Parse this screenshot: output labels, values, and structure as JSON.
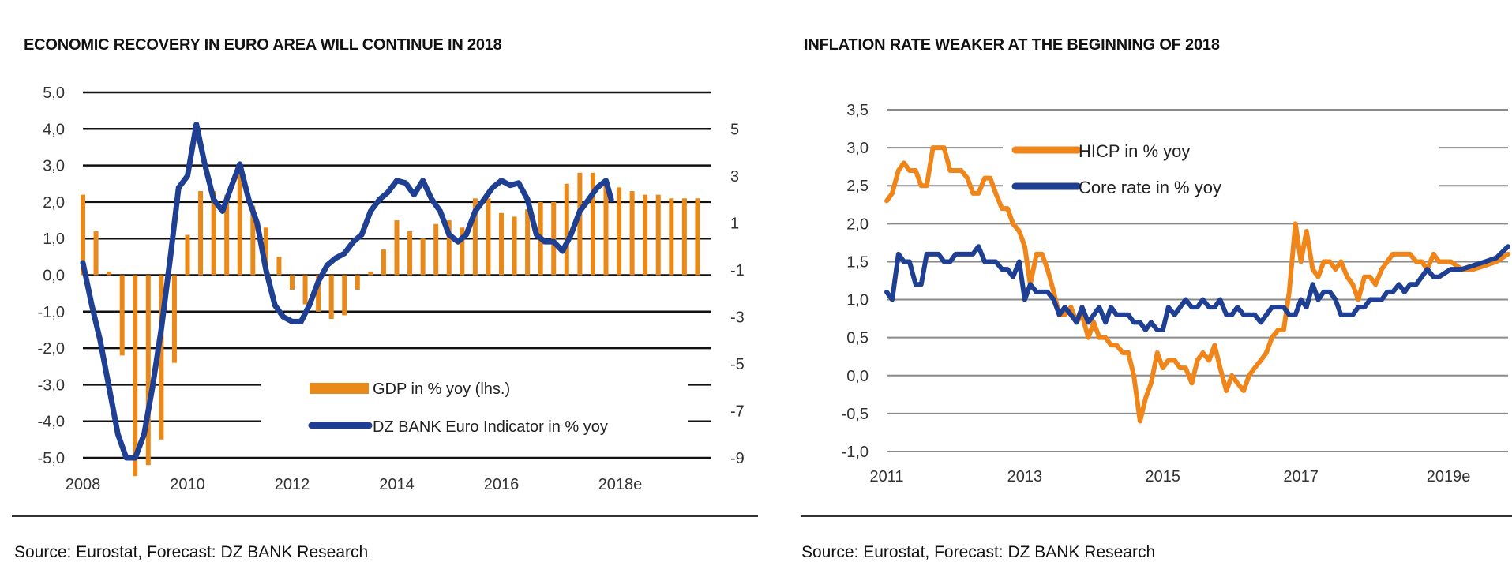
{
  "chart_data": [
    {
      "type": "bar+line",
      "title": "ECONOMIC RECOVERY IN EURO AREA WILL CONTINUE IN 2018",
      "source": "Source: Eurostat, Forecast: DZ BANK Research",
      "xlabel": "",
      "ylabel_left": "",
      "ylabel_right": "",
      "x_tick_labels": [
        "2008",
        "2010",
        "2012",
        "2014",
        "2016",
        "2018e"
      ],
      "x_range": [
        2008,
        2020
      ],
      "y_left": {
        "range": [
          -5,
          5
        ],
        "ticks": [
          "5,0",
          "4,0",
          "3,0",
          "2,0",
          "1,0",
          "0,0",
          "-1,0",
          "-2,0",
          "-3,0",
          "-4,0",
          "-5,0"
        ],
        "tick_values": [
          5,
          4,
          3,
          2,
          1,
          0,
          -1,
          -2,
          -3,
          -4,
          -5
        ]
      },
      "y_right": {
        "range": [
          -9,
          7
        ],
        "ticks": [
          "5",
          "3",
          "1",
          "-1",
          "-3",
          "-5",
          "-7",
          "-9"
        ],
        "tick_values": [
          5,
          3,
          1,
          -1,
          -3,
          -5,
          -7,
          -9
        ]
      },
      "grid": true,
      "legend": {
        "placement": "bottom-right",
        "entries": [
          {
            "label": "GDP in % yoy (lhs.)",
            "color": "#E8891A",
            "kind": "bar"
          },
          {
            "label": "DZ BANK Euro Indicator in % yoy",
            "color": "#1F3F93",
            "kind": "line"
          }
        ]
      },
      "series": [
        {
          "name": "GDP in % yoy (lhs.)",
          "type": "bar",
          "axis": "left",
          "color": "#E8891A",
          "x": [
            2008.0,
            2008.25,
            2008.5,
            2008.75,
            2009.0,
            2009.25,
            2009.5,
            2009.75,
            2010.0,
            2010.25,
            2010.5,
            2010.75,
            2011.0,
            2011.25,
            2011.5,
            2011.75,
            2012.0,
            2012.25,
            2012.5,
            2012.75,
            2013.0,
            2013.25,
            2013.5,
            2013.75,
            2014.0,
            2014.25,
            2014.5,
            2014.75,
            2015.0,
            2015.25,
            2015.5,
            2015.75,
            2016.0,
            2016.25,
            2016.5,
            2016.75,
            2017.0,
            2017.25,
            2017.5,
            2017.75,
            2018.0,
            2018.25,
            2018.5,
            2018.75,
            2019.0,
            2019.25,
            2019.5,
            2019.75
          ],
          "values": [
            2.2,
            1.2,
            0.1,
            -2.2,
            -5.5,
            -5.2,
            -4.5,
            -2.4,
            1.1,
            2.3,
            2.3,
            2.2,
            2.8,
            1.9,
            1.3,
            0.5,
            -0.4,
            -0.8,
            -1.0,
            -1.2,
            -1.1,
            -0.4,
            0.1,
            0.7,
            1.5,
            1.2,
            1.0,
            1.4,
            1.5,
            1.3,
            2.1,
            2.1,
            1.7,
            1.6,
            1.8,
            2.0,
            2.0,
            2.5,
            2.8,
            2.8,
            2.6,
            2.4,
            2.3,
            2.2,
            2.2,
            2.1,
            2.1,
            2.1
          ]
        },
        {
          "name": "DZ BANK Euro Indicator in % yoy",
          "type": "line",
          "axis": "right",
          "color": "#1F3F93",
          "x": [
            2008.0,
            2008.17,
            2008.33,
            2008.5,
            2008.67,
            2008.83,
            2009.0,
            2009.17,
            2009.33,
            2009.5,
            2009.67,
            2009.83,
            2010.0,
            2010.17,
            2010.33,
            2010.5,
            2010.67,
            2010.83,
            2011.0,
            2011.17,
            2011.33,
            2011.5,
            2011.67,
            2011.83,
            2012.0,
            2012.17,
            2012.33,
            2012.5,
            2012.67,
            2012.83,
            2013.0,
            2013.17,
            2013.33,
            2013.5,
            2013.67,
            2013.83,
            2014.0,
            2014.17,
            2014.33,
            2014.5,
            2014.67,
            2014.83,
            2015.0,
            2015.17,
            2015.33,
            2015.5,
            2015.67,
            2015.83,
            2016.0,
            2016.17,
            2016.33,
            2016.5,
            2016.67,
            2016.83,
            2017.0,
            2017.17,
            2017.33,
            2017.5,
            2017.67,
            2017.83,
            2018.0,
            2018.1
          ],
          "values": [
            -0.7,
            -2.5,
            -4.0,
            -6.0,
            -8.0,
            -9.0,
            -9.0,
            -8.0,
            -6.0,
            -3.5,
            -0.5,
            2.5,
            3.0,
            5.2,
            3.5,
            2.0,
            1.5,
            2.5,
            3.5,
            2.0,
            1.0,
            -1.0,
            -2.5,
            -3.0,
            -3.2,
            -3.2,
            -2.5,
            -1.5,
            -0.8,
            -0.5,
            -0.3,
            0.2,
            0.5,
            1.5,
            2.0,
            2.3,
            2.8,
            2.7,
            2.2,
            2.8,
            2.0,
            1.5,
            0.5,
            0.2,
            0.5,
            1.5,
            2.0,
            2.5,
            2.8,
            2.6,
            2.7,
            2.0,
            0.5,
            0.2,
            0.2,
            -0.2,
            0.5,
            1.5,
            2.0,
            2.5,
            2.8,
            2.0
          ]
        }
      ]
    },
    {
      "type": "line",
      "title": "INFLATION RATE WEAKER AT THE BEGINNING OF 2018",
      "source": "Source: Eurostat, Forecast: DZ BANK Research",
      "xlabel": "",
      "ylabel": "",
      "x_tick_labels": [
        "2011",
        "2013",
        "2015",
        "2017",
        "2019e"
      ],
      "x_range": [
        2011,
        2020
      ],
      "ylim": [
        -1.0,
        3.5
      ],
      "y_ticks": [
        "3,5",
        "3,0",
        "2,5",
        "2,0",
        "1,5",
        "1,0",
        "0,5",
        "0,0",
        "-0,5",
        "-1,0"
      ],
      "y_tick_values": [
        3.5,
        3.0,
        2.5,
        2.0,
        1.5,
        1.0,
        0.5,
        0.0,
        -0.5,
        -1.0
      ],
      "grid": true,
      "legend": {
        "placement": "top-right",
        "entries": [
          {
            "label": "HICP in % yoy",
            "color": "#F0861A"
          },
          {
            "label": "Core rate in % yoy",
            "color": "#1F3F93"
          }
        ]
      },
      "series": [
        {
          "name": "HICP in % yoy",
          "color": "#F0861A",
          "x": [
            2011.0,
            2011.08,
            2011.17,
            2011.25,
            2011.33,
            2011.42,
            2011.5,
            2011.58,
            2011.67,
            2011.75,
            2011.83,
            2011.92,
            2012.0,
            2012.08,
            2012.17,
            2012.25,
            2012.33,
            2012.42,
            2012.5,
            2012.58,
            2012.67,
            2012.75,
            2012.83,
            2012.92,
            2013.0,
            2013.08,
            2013.17,
            2013.25,
            2013.33,
            2013.42,
            2013.5,
            2013.58,
            2013.67,
            2013.75,
            2013.83,
            2013.92,
            2014.0,
            2014.08,
            2014.17,
            2014.25,
            2014.33,
            2014.42,
            2014.5,
            2014.58,
            2014.67,
            2014.75,
            2014.83,
            2014.92,
            2015.0,
            2015.08,
            2015.17,
            2015.25,
            2015.33,
            2015.42,
            2015.5,
            2015.58,
            2015.67,
            2015.75,
            2015.83,
            2015.92,
            2016.0,
            2016.08,
            2016.17,
            2016.25,
            2016.33,
            2016.42,
            2016.5,
            2016.58,
            2016.67,
            2016.75,
            2016.83,
            2016.92,
            2017.0,
            2017.08,
            2017.17,
            2017.25,
            2017.33,
            2017.42,
            2017.5,
            2017.58,
            2017.67,
            2017.75,
            2017.83,
            2017.92,
            2018.0,
            2018.08,
            2018.17,
            2018.25,
            2018.33,
            2018.42,
            2018.5,
            2018.58,
            2018.67,
            2018.75,
            2018.83,
            2018.92,
            2019.0,
            2019.17,
            2019.33,
            2019.5,
            2019.67,
            2019.83,
            2020.0
          ],
          "values": [
            2.3,
            2.4,
            2.7,
            2.8,
            2.7,
            2.7,
            2.5,
            2.5,
            3.0,
            3.0,
            3.0,
            2.7,
            2.7,
            2.7,
            2.6,
            2.4,
            2.4,
            2.6,
            2.6,
            2.4,
            2.2,
            2.2,
            2.0,
            1.9,
            1.7,
            1.2,
            1.6,
            1.6,
            1.4,
            1.1,
            0.8,
            0.8,
            0.9,
            0.7,
            0.8,
            0.5,
            0.7,
            0.5,
            0.5,
            0.4,
            0.4,
            0.3,
            0.3,
            0.0,
            -0.6,
            -0.3,
            -0.1,
            0.3,
            0.1,
            0.2,
            0.2,
            0.1,
            0.1,
            -0.1,
            0.2,
            0.3,
            0.2,
            0.4,
            0.1,
            -0.2,
            0.0,
            -0.1,
            -0.2,
            0.0,
            0.1,
            0.2,
            0.3,
            0.5,
            0.6,
            0.6,
            1.1,
            2.0,
            1.5,
            1.9,
            1.4,
            1.3,
            1.5,
            1.5,
            1.4,
            1.5,
            1.3,
            1.2,
            1.0,
            1.3,
            1.3,
            1.2,
            1.4,
            1.5,
            1.6,
            1.6,
            1.6,
            1.6,
            1.5,
            1.5,
            1.4,
            1.6,
            1.5,
            1.5,
            1.4,
            1.4,
            1.45,
            1.5,
            1.6
          ]
        },
        {
          "name": "Core rate in % yoy",
          "color": "#1F3F93",
          "x": [
            2011.0,
            2011.08,
            2011.17,
            2011.25,
            2011.33,
            2011.42,
            2011.5,
            2011.58,
            2011.67,
            2011.75,
            2011.83,
            2011.92,
            2012.0,
            2012.08,
            2012.17,
            2012.25,
            2012.33,
            2012.42,
            2012.5,
            2012.58,
            2012.67,
            2012.75,
            2012.83,
            2012.92,
            2013.0,
            2013.08,
            2013.17,
            2013.25,
            2013.33,
            2013.42,
            2013.5,
            2013.58,
            2013.67,
            2013.75,
            2013.83,
            2013.92,
            2014.0,
            2014.08,
            2014.17,
            2014.25,
            2014.33,
            2014.42,
            2014.5,
            2014.58,
            2014.67,
            2014.75,
            2014.83,
            2014.92,
            2015.0,
            2015.08,
            2015.17,
            2015.25,
            2015.33,
            2015.42,
            2015.5,
            2015.58,
            2015.67,
            2015.75,
            2015.83,
            2015.92,
            2016.0,
            2016.08,
            2016.17,
            2016.25,
            2016.33,
            2016.42,
            2016.5,
            2016.58,
            2016.67,
            2016.75,
            2016.83,
            2016.92,
            2017.0,
            2017.08,
            2017.17,
            2017.25,
            2017.33,
            2017.42,
            2017.5,
            2017.58,
            2017.67,
            2017.75,
            2017.83,
            2017.92,
            2018.0,
            2018.08,
            2018.17,
            2018.25,
            2018.33,
            2018.42,
            2018.5,
            2018.58,
            2018.67,
            2018.75,
            2018.83,
            2018.92,
            2019.0,
            2019.17,
            2019.33,
            2019.5,
            2019.67,
            2019.83,
            2020.0
          ],
          "values": [
            1.1,
            1.0,
            1.6,
            1.5,
            1.5,
            1.2,
            1.2,
            1.6,
            1.6,
            1.6,
            1.5,
            1.5,
            1.6,
            1.6,
            1.6,
            1.6,
            1.7,
            1.5,
            1.5,
            1.5,
            1.4,
            1.4,
            1.3,
            1.5,
            1.0,
            1.2,
            1.1,
            1.1,
            1.1,
            1.0,
            0.8,
            0.9,
            0.8,
            0.7,
            0.9,
            0.7,
            0.8,
            0.9,
            0.7,
            0.9,
            0.8,
            0.8,
            0.8,
            0.7,
            0.7,
            0.6,
            0.7,
            0.6,
            0.6,
            0.9,
            0.8,
            0.9,
            1.0,
            0.9,
            0.9,
            1.0,
            0.9,
            0.9,
            1.0,
            0.8,
            0.8,
            0.9,
            0.8,
            0.8,
            0.8,
            0.7,
            0.8,
            0.9,
            0.9,
            0.9,
            0.8,
            0.8,
            1.0,
            0.9,
            1.2,
            1.0,
            1.1,
            1.1,
            1.0,
            0.8,
            0.8,
            0.8,
            0.9,
            0.9,
            1.0,
            1.0,
            1.0,
            1.1,
            1.1,
            1.2,
            1.1,
            1.2,
            1.2,
            1.3,
            1.4,
            1.3,
            1.3,
            1.4,
            1.4,
            1.45,
            1.5,
            1.55,
            1.7
          ]
        }
      ]
    }
  ]
}
